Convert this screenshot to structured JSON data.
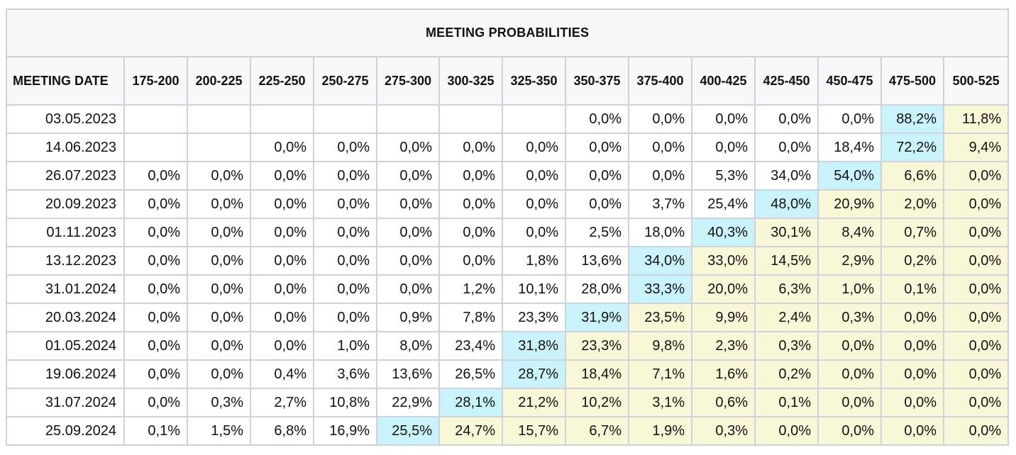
{
  "table": {
    "title": "MEETING PROBABILITIES",
    "date_header": "MEETING DATE",
    "ranges": [
      "175-200",
      "200-225",
      "225-250",
      "250-275",
      "275-300",
      "300-325",
      "325-350",
      "350-375",
      "375-400",
      "400-425",
      "425-450",
      "450-475",
      "475-500",
      "500-525"
    ],
    "colors": {
      "max_probability": "#c9f3fb",
      "above_max_range": "#f8f8d7",
      "border": "#cfd2dc",
      "header_bg": "#f8f8f8"
    },
    "rows": [
      {
        "date": "03.05.2023",
        "values": [
          "",
          "",
          "",
          "",
          "",
          "",
          "",
          "0,0%",
          "0,0%",
          "0,0%",
          "0,0%",
          "0,0%",
          "88,2%",
          "11,8%"
        ],
        "max_index": 12
      },
      {
        "date": "14.06.2023",
        "values": [
          "",
          "",
          "0,0%",
          "0,0%",
          "0,0%",
          "0,0%",
          "0,0%",
          "0,0%",
          "0,0%",
          "0,0%",
          "0,0%",
          "18,4%",
          "72,2%",
          "9,4%"
        ],
        "max_index": 12
      },
      {
        "date": "26.07.2023",
        "values": [
          "0,0%",
          "0,0%",
          "0,0%",
          "0,0%",
          "0,0%",
          "0,0%",
          "0,0%",
          "0,0%",
          "0,0%",
          "5,3%",
          "34,0%",
          "54,0%",
          "6,6%",
          "0,0%"
        ],
        "max_index": 11
      },
      {
        "date": "20.09.2023",
        "values": [
          "0,0%",
          "0,0%",
          "0,0%",
          "0,0%",
          "0,0%",
          "0,0%",
          "0,0%",
          "0,0%",
          "3,7%",
          "25,4%",
          "48,0%",
          "20,9%",
          "2,0%",
          "0,0%"
        ],
        "max_index": 10
      },
      {
        "date": "01.11.2023",
        "values": [
          "0,0%",
          "0,0%",
          "0,0%",
          "0,0%",
          "0,0%",
          "0,0%",
          "0,0%",
          "2,5%",
          "18,0%",
          "40,3%",
          "30,1%",
          "8,4%",
          "0,7%",
          "0,0%"
        ],
        "max_index": 9
      },
      {
        "date": "13.12.2023",
        "values": [
          "0,0%",
          "0,0%",
          "0,0%",
          "0,0%",
          "0,0%",
          "0,0%",
          "1,8%",
          "13,6%",
          "34,0%",
          "33,0%",
          "14,5%",
          "2,9%",
          "0,2%",
          "0,0%"
        ],
        "max_index": 8
      },
      {
        "date": "31.01.2024",
        "values": [
          "0,0%",
          "0,0%",
          "0,0%",
          "0,0%",
          "0,0%",
          "1,2%",
          "10,1%",
          "28,0%",
          "33,3%",
          "20,0%",
          "6,3%",
          "1,0%",
          "0,1%",
          "0,0%"
        ],
        "max_index": 8
      },
      {
        "date": "20.03.2024",
        "values": [
          "0,0%",
          "0,0%",
          "0,0%",
          "0,0%",
          "0,9%",
          "7,8%",
          "23,3%",
          "31,9%",
          "23,5%",
          "9,9%",
          "2,4%",
          "0,3%",
          "0,0%",
          "0,0%"
        ],
        "max_index": 7
      },
      {
        "date": "01.05.2024",
        "values": [
          "0,0%",
          "0,0%",
          "0,0%",
          "1,0%",
          "8,0%",
          "23,4%",
          "31,8%",
          "23,3%",
          "9,8%",
          "2,3%",
          "0,3%",
          "0,0%",
          "0,0%",
          "0,0%"
        ],
        "max_index": 6
      },
      {
        "date": "19.06.2024",
        "values": [
          "0,0%",
          "0,0%",
          "0,4%",
          "3,6%",
          "13,6%",
          "26,5%",
          "28,7%",
          "18,4%",
          "7,1%",
          "1,6%",
          "0,2%",
          "0,0%",
          "0,0%",
          "0,0%"
        ],
        "max_index": 6
      },
      {
        "date": "31.07.2024",
        "values": [
          "0,0%",
          "0,3%",
          "2,7%",
          "10,8%",
          "22,9%",
          "28,1%",
          "21,2%",
          "10,2%",
          "3,1%",
          "0,6%",
          "0,1%",
          "0,0%",
          "0,0%",
          "0,0%"
        ],
        "max_index": 5
      },
      {
        "date": "25.09.2024",
        "values": [
          "0,1%",
          "1,5%",
          "6,8%",
          "16,9%",
          "25,5%",
          "24,7%",
          "15,7%",
          "6,7%",
          "1,9%",
          "0,3%",
          "0,0%",
          "0,0%",
          "0,0%",
          "0,0%"
        ],
        "max_index": 4
      }
    ]
  }
}
